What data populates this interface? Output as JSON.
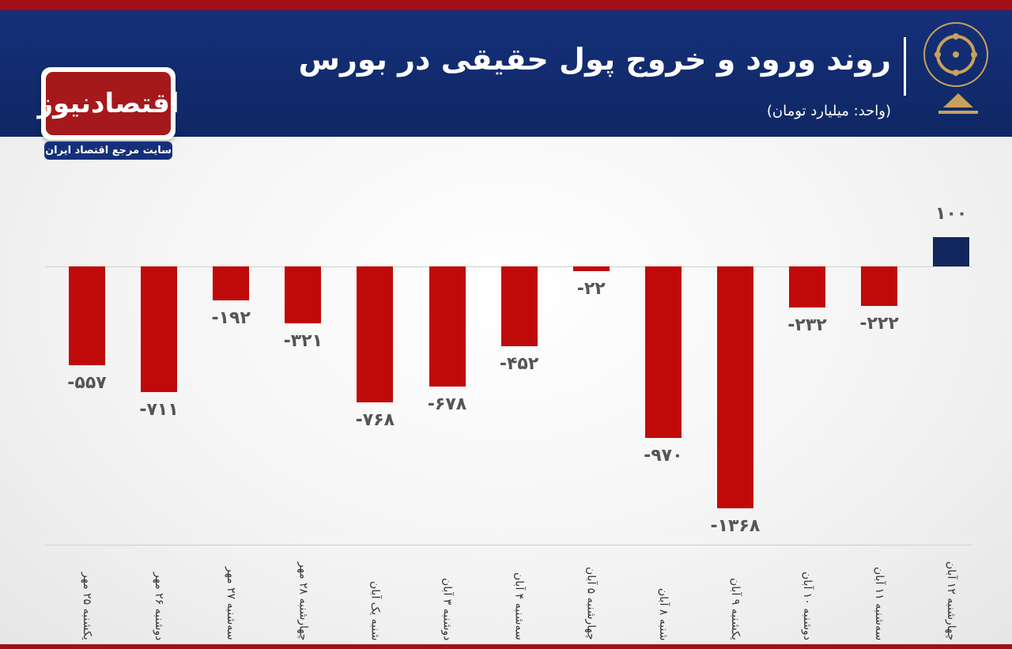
{
  "header": {
    "title": "روند ورود و خروج پول حقیقی در بورس",
    "subtitle": "(واحد: میلیارد تومان)"
  },
  "logo": {
    "name": "اقتصادنیوز",
    "tagline": "سایت مرجع اقتصاد ایران"
  },
  "colors": {
    "header": "#15307a",
    "negative_bar": "#c00a0a",
    "positive_bar": "#12265e",
    "accent_strip": "#a30f14"
  },
  "chart_data": {
    "type": "bar",
    "categories": [
      "یکشنبه ۲۵ مهر",
      "دوشنبه ۲۶ مهر",
      "سه‌شنبه ۲۷ مهر",
      "چهارشنبه ۲۸ مهر",
      "شنبه یک آبان",
      "دوشنبه ۳ آبان",
      "سه‌شنبه ۴ آبان",
      "چهارشنبه ۵ آبان",
      "شنبه ۸ آبان",
      "یکشنبه ۹ آبان",
      "دوشنبه ۱۰ آبان",
      "سه‌شنبه ۱۱ آبان",
      "چهارشنبه ۱۲ آبان"
    ],
    "values": [
      -557,
      -711,
      -192,
      -321,
      -768,
      -678,
      -452,
      -22,
      -970,
      -1368,
      -232,
      -222,
      100
    ],
    "labels": [
      "-۵۵۷",
      "-۷۱۱",
      "-۱۹۲",
      "-۳۲۱",
      "-۷۶۸",
      "-۶۷۸",
      "-۴۵۲",
      "-۲۲",
      "-۹۷۰",
      "-۱۳۶۸",
      "-۲۳۲",
      "-۲۲۲",
      "۱۰۰"
    ],
    "grid": false,
    "legend": "none"
  }
}
